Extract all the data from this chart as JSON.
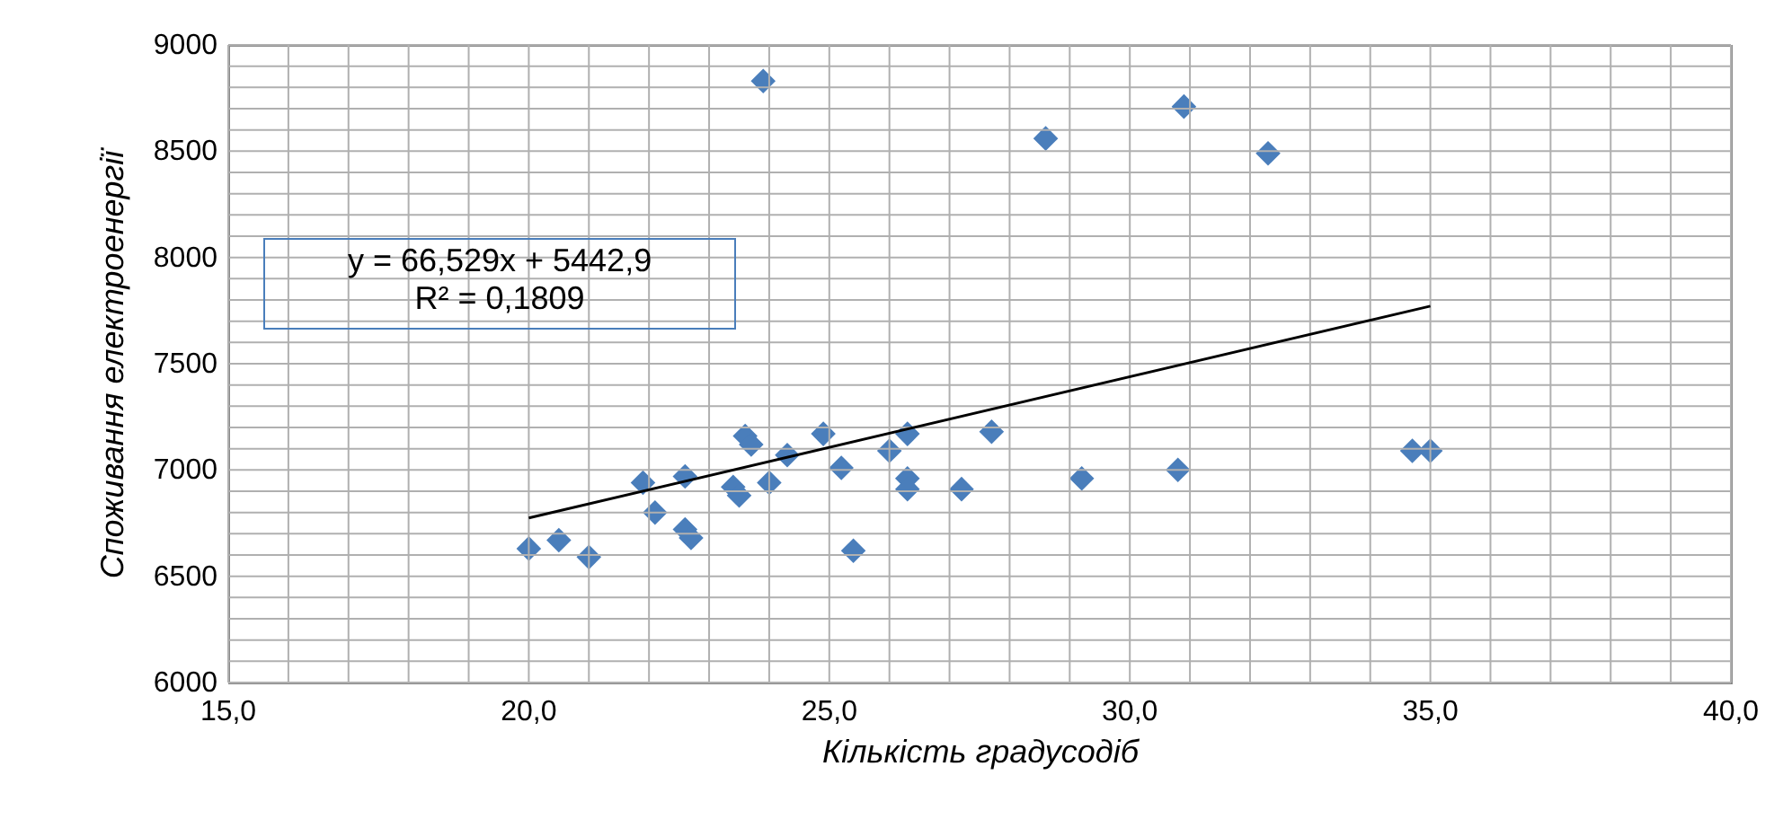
{
  "chart_data": {
    "type": "scatter",
    "xlabel": "Кількість градусодіб",
    "ylabel": "Споживання електроенергії",
    "xlim": [
      15,
      40
    ],
    "ylim": [
      6000,
      9000
    ],
    "xticks": [
      {
        "value": 15,
        "label": "15,0"
      },
      {
        "value": 16,
        "label": null
      },
      {
        "value": 17,
        "label": null
      },
      {
        "value": 18,
        "label": null
      },
      {
        "value": 19,
        "label": null
      },
      {
        "value": 20,
        "label": "20,0"
      },
      {
        "value": 21,
        "label": null
      },
      {
        "value": 22,
        "label": null
      },
      {
        "value": 23,
        "label": null
      },
      {
        "value": 24,
        "label": null
      },
      {
        "value": 25,
        "label": "25,0"
      },
      {
        "value": 26,
        "label": null
      },
      {
        "value": 27,
        "label": null
      },
      {
        "value": 28,
        "label": null
      },
      {
        "value": 29,
        "label": null
      },
      {
        "value": 30,
        "label": "30,0"
      },
      {
        "value": 31,
        "label": null
      },
      {
        "value": 32,
        "label": null
      },
      {
        "value": 33,
        "label": null
      },
      {
        "value": 34,
        "label": null
      },
      {
        "value": 35,
        "label": "35,0"
      },
      {
        "value": 36,
        "label": null
      },
      {
        "value": 37,
        "label": null
      },
      {
        "value": 38,
        "label": null
      },
      {
        "value": 39,
        "label": null
      },
      {
        "value": 40,
        "label": "40,0"
      }
    ],
    "yticks": [
      6000,
      {
        "value": 6100,
        "label": null
      },
      {
        "value": 6200,
        "label": null
      },
      {
        "value": 6300,
        "label": null
      },
      {
        "value": 6400,
        "label": null
      },
      6500,
      {
        "value": 6600,
        "label": null
      },
      {
        "value": 6700,
        "label": null
      },
      {
        "value": 6800,
        "label": null
      },
      {
        "value": 6900,
        "label": null
      },
      7000,
      {
        "value": 7100,
        "label": null
      },
      {
        "value": 7200,
        "label": null
      },
      {
        "value": 7300,
        "label": null
      },
      {
        "value": 7400,
        "label": null
      },
      7500,
      {
        "value": 7600,
        "label": null
      },
      {
        "value": 7700,
        "label": null
      },
      {
        "value": 7800,
        "label": null
      },
      {
        "value": 7900,
        "label": null
      },
      8000,
      {
        "value": 8100,
        "label": null
      },
      {
        "value": 8200,
        "label": null
      },
      {
        "value": 8300,
        "label": null
      },
      {
        "value": 8400,
        "label": null
      },
      8500,
      {
        "value": 8600,
        "label": null
      },
      {
        "value": 8700,
        "label": null
      },
      {
        "value": 8800,
        "label": null
      },
      {
        "value": 8900,
        "label": null
      },
      9000
    ],
    "grid": true,
    "legend": false,
    "marker": "diamond",
    "series": [
      {
        "color": "#4a7ebb",
        "x": [
          20.0,
          20.5,
          21.0,
          21.9,
          22.1,
          22.6,
          22.6,
          22.7,
          23.4,
          23.5,
          23.6,
          23.7,
          24.0,
          24.3,
          24.9,
          25.2,
          25.4,
          26.0,
          26.3,
          26.3,
          26.3,
          27.2,
          27.7,
          28.6,
          29.2,
          30.8,
          30.9,
          32.3,
          34.7,
          35.0,
          23.9
        ],
        "values": [
          6630,
          6670,
          6590,
          6940,
          6800,
          6970,
          6720,
          6680,
          6920,
          6880,
          7160,
          7120,
          6940,
          7070,
          7170,
          7010,
          6620,
          7090,
          7170,
          6960,
          6910,
          6910,
          7180,
          8560,
          6960,
          7000,
          8710,
          8490,
          7090,
          7090,
          8830
        ]
      },
      {
        "type": "line",
        "color": "#000000",
        "marker": "none",
        "x": [
          20,
          35
        ],
        "values": [
          6774,
          7771
        ]
      }
    ],
    "annotations": [
      "y = 66,529x + 5442,9\nR² = 0,1809"
    ]
  }
}
